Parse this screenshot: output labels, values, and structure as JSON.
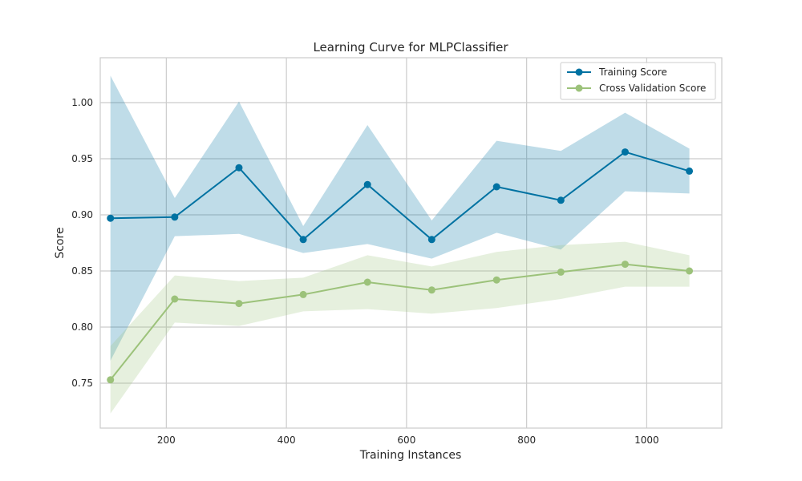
{
  "chart_data": {
    "type": "line",
    "title": "Learning Curve for MLPClassifier",
    "xlabel": "Training Instances",
    "ylabel": "Score",
    "xlim": [
      90,
      1125
    ],
    "ylim": [
      0.71,
      1.04
    ],
    "xticks": [
      200,
      400,
      600,
      800,
      1000
    ],
    "yticks": [
      0.75,
      0.8,
      0.85,
      0.9,
      0.95,
      1.0
    ],
    "grid": true,
    "legend_position": "top-right",
    "x": [
      107,
      214,
      321,
      428,
      535,
      642,
      750,
      857,
      964,
      1071
    ],
    "series": [
      {
        "name": "Training Score",
        "color": "#0072a2",
        "band_color": "#bcd9e5",
        "values": [
          0.897,
          0.898,
          0.942,
          0.878,
          0.927,
          0.878,
          0.925,
          0.913,
          0.956,
          0.939
        ],
        "lower": [
          0.77,
          0.881,
          0.883,
          0.866,
          0.874,
          0.861,
          0.884,
          0.869,
          0.921,
          0.919
        ],
        "upper": [
          1.024,
          0.915,
          1.001,
          0.89,
          0.98,
          0.895,
          0.966,
          0.957,
          0.991,
          0.959
        ]
      },
      {
        "name": "Cross Validation Score",
        "color": "#9cc27a",
        "band_color": "#e3ecd6",
        "values": [
          0.753,
          0.825,
          0.821,
          0.829,
          0.84,
          0.833,
          0.842,
          0.849,
          0.856,
          0.85
        ],
        "lower": [
          0.723,
          0.804,
          0.801,
          0.814,
          0.816,
          0.812,
          0.817,
          0.825,
          0.836,
          0.836
        ],
        "upper": [
          0.783,
          0.846,
          0.841,
          0.844,
          0.864,
          0.854,
          0.867,
          0.873,
          0.876,
          0.864
        ]
      }
    ]
  }
}
